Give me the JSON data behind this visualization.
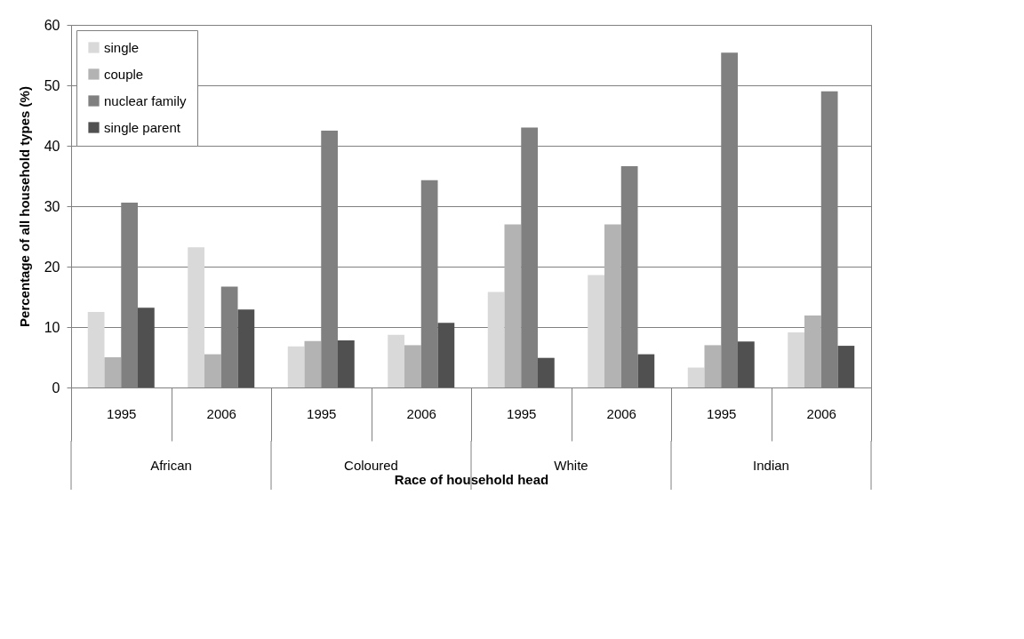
{
  "chart_data": {
    "type": "bar",
    "xlabel": "Race of household head",
    "ylabel": "Percentage of all household types (%)",
    "categories": [
      "1995",
      "2006",
      "1995",
      "2006",
      "1995",
      "2006",
      "1995",
      "2006"
    ],
    "annotations": [
      "African",
      "Coloured",
      "White",
      "Indian"
    ],
    "series": [
      {
        "name": "single",
        "color": "#d9d9d9",
        "values": [
          12.5,
          23.2,
          6.8,
          8.7,
          15.8,
          18.6,
          3.3,
          9.1
        ]
      },
      {
        "name": "couple",
        "color": "#b3b3b3",
        "values": [
          5.0,
          5.5,
          7.7,
          7.0,
          27.0,
          27.0,
          7.0,
          11.9
        ]
      },
      {
        "name": "nuclear family",
        "color": "#808080",
        "values": [
          30.6,
          16.7,
          42.5,
          34.3,
          43.0,
          36.6,
          55.4,
          49.0
        ]
      },
      {
        "name": "single parent",
        "color": "#505050",
        "values": [
          13.2,
          12.9,
          7.8,
          10.7,
          4.9,
          5.5,
          7.6,
          6.9
        ]
      }
    ],
    "ylim": [
      0,
      60
    ],
    "yticks": [
      0,
      10,
      20,
      30,
      40,
      50,
      60
    ],
    "grid": "y",
    "legend": "top left"
  }
}
